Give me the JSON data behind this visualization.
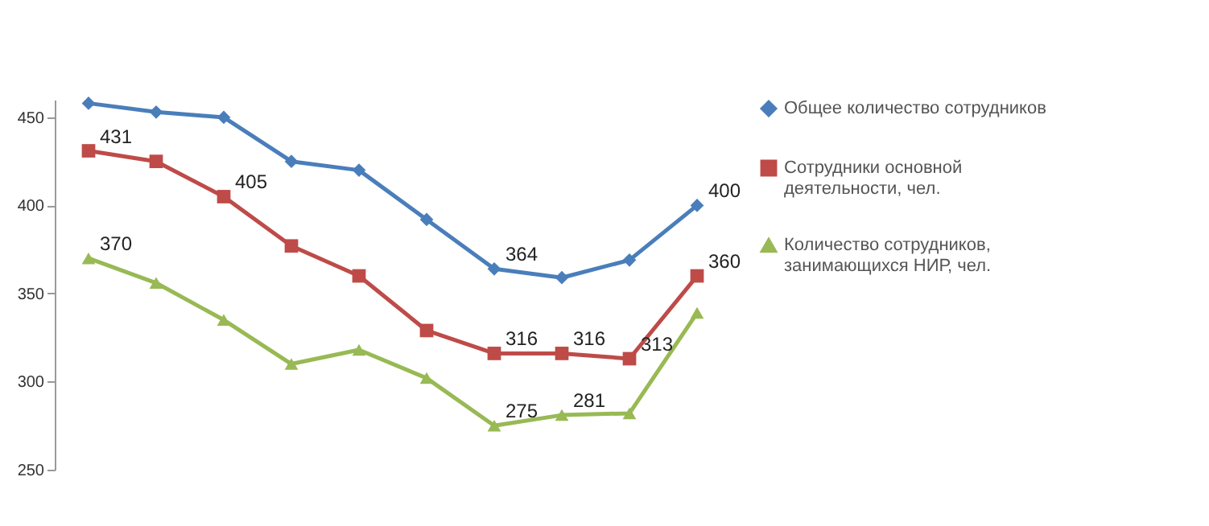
{
  "chart_data": {
    "type": "line",
    "categories": [
      null,
      null,
      null,
      null,
      null,
      null,
      null,
      null,
      null,
      null
    ],
    "series": [
      {
        "name": "Общее количество сотрудников",
        "color": "#4a7ebb",
        "marker": "diamond",
        "values": [
          458,
          453,
          450,
          425,
          420,
          392,
          364,
          359,
          369,
          400
        ],
        "value_labels": [
          null,
          null,
          null,
          null,
          null,
          null,
          "364",
          null,
          null,
          "400"
        ]
      },
      {
        "name": "Сотрудники основной деятельности, чел.",
        "color": "#be4b48",
        "marker": "square",
        "values": [
          431,
          425,
          405,
          377,
          360,
          329,
          316,
          316,
          313,
          360
        ],
        "value_labels": [
          "431",
          null,
          "405",
          null,
          null,
          null,
          "316",
          "316",
          "313",
          "360"
        ]
      },
      {
        "name": "Количество сотрудников, занимающихся НИР, чел.",
        "color": "#98b954",
        "marker": "triangle",
        "values": [
          370,
          356,
          335,
          310,
          318,
          302,
          275,
          281,
          282,
          339
        ],
        "value_labels": [
          "370",
          null,
          null,
          null,
          null,
          null,
          "275",
          "281",
          null,
          null
        ]
      }
    ],
    "ylim": [
      250,
      460
    ],
    "yticks": [
      250,
      300,
      350,
      400,
      450
    ],
    "grid": false,
    "legend": "right"
  }
}
